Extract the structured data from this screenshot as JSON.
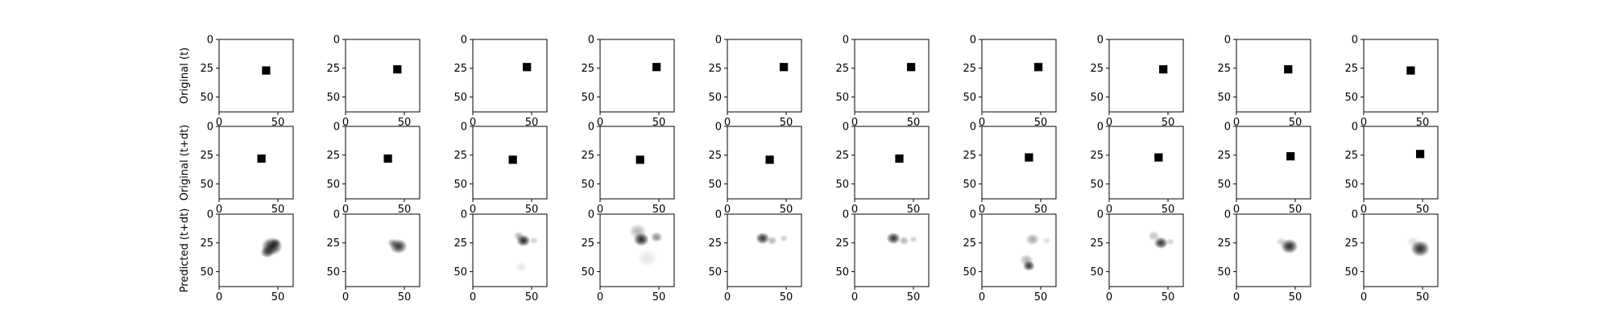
{
  "row_labels": [
    "Original (t)",
    "Original (t+dt)",
    "Predicted (t+dt)"
  ],
  "chart_data": {
    "type": "heatmap",
    "description_note": "",
    "grid": "off",
    "colormap": "gray_r",
    "rows": 3,
    "cols": 10,
    "image_size": 64,
    "xlim": [
      0,
      63
    ],
    "ylim": [
      63,
      0
    ],
    "xticks": [
      0,
      50
    ],
    "yticks": [
      0,
      25,
      50
    ],
    "tick_labels": {
      "x": [
        "0",
        "50"
      ],
      "y": [
        "0",
        "25",
        "50"
      ]
    },
    "panels": [
      [
        {
          "blobs": [
            {
              "x": 40,
              "y": 27,
              "s": 7,
              "i": 1
            }
          ]
        },
        {
          "blobs": [
            {
              "x": 44,
              "y": 26,
              "s": 7,
              "i": 1
            }
          ]
        },
        {
          "blobs": [
            {
              "x": 46,
              "y": 24,
              "s": 7,
              "i": 1
            }
          ]
        },
        {
          "blobs": [
            {
              "x": 48,
              "y": 24,
              "s": 7,
              "i": 1
            }
          ]
        },
        {
          "blobs": [
            {
              "x": 48,
              "y": 24,
              "s": 7,
              "i": 1
            }
          ]
        },
        {
          "blobs": [
            {
              "x": 48,
              "y": 24,
              "s": 7,
              "i": 1
            }
          ]
        },
        {
          "blobs": [
            {
              "x": 48,
              "y": 24,
              "s": 7,
              "i": 1
            }
          ]
        },
        {
          "blobs": [
            {
              "x": 46,
              "y": 26,
              "s": 7,
              "i": 1
            }
          ]
        },
        {
          "blobs": [
            {
              "x": 44,
              "y": 26,
              "s": 7,
              "i": 1
            }
          ]
        },
        {
          "blobs": [
            {
              "x": 40,
              "y": 27,
              "s": 7,
              "i": 1
            }
          ]
        }
      ],
      [
        {
          "blobs": [
            {
              "x": 36,
              "y": 28,
              "s": 7,
              "i": 1
            }
          ]
        },
        {
          "blobs": [
            {
              "x": 36,
              "y": 28,
              "s": 7,
              "i": 1
            }
          ]
        },
        {
          "blobs": [
            {
              "x": 34,
              "y": 29,
              "s": 7,
              "i": 1
            }
          ]
        },
        {
          "blobs": [
            {
              "x": 34,
              "y": 29,
              "s": 7,
              "i": 1
            }
          ]
        },
        {
          "blobs": [
            {
              "x": 36,
              "y": 29,
              "s": 7,
              "i": 1
            }
          ]
        },
        {
          "blobs": [
            {
              "x": 38,
              "y": 28,
              "s": 7,
              "i": 1
            }
          ]
        },
        {
          "blobs": [
            {
              "x": 40,
              "y": 27,
              "s": 7,
              "i": 1
            }
          ]
        },
        {
          "blobs": [
            {
              "x": 42,
              "y": 27,
              "s": 7,
              "i": 1
            }
          ]
        },
        {
          "blobs": [
            {
              "x": 46,
              "y": 26,
              "s": 7,
              "i": 1
            }
          ]
        },
        {
          "blobs": [
            {
              "x": 48,
              "y": 24,
              "s": 7,
              "i": 1
            }
          ]
        }
      ],
      [
        {
          "blobs": [
            {
              "x": 45,
              "y": 28,
              "s": 12,
              "i": 0.9
            },
            {
              "x": 41,
              "y": 33,
              "s": 8,
              "i": 0.7
            },
            {
              "x": 48,
              "y": 25,
              "s": 6,
              "i": 0.5
            }
          ]
        },
        {
          "blobs": [
            {
              "x": 45,
              "y": 28,
              "s": 10,
              "i": 0.8
            },
            {
              "x": 40,
              "y": 25,
              "s": 6,
              "i": 0.4
            }
          ]
        },
        {
          "blobs": [
            {
              "x": 43,
              "y": 23,
              "s": 8,
              "i": 0.85
            },
            {
              "x": 39,
              "y": 19,
              "s": 6,
              "i": 0.3
            },
            {
              "x": 52,
              "y": 23,
              "s": 5,
              "i": 0.2
            },
            {
              "x": 41,
              "y": 46,
              "s": 7,
              "i": 0.1
            }
          ]
        },
        {
          "blobs": [
            {
              "x": 35,
              "y": 22,
              "s": 9,
              "i": 0.85
            },
            {
              "x": 32,
              "y": 15,
              "s": 10,
              "i": 0.3
            },
            {
              "x": 48,
              "y": 20,
              "s": 7,
              "i": 0.45
            },
            {
              "x": 40,
              "y": 38,
              "s": 12,
              "i": 0.1
            }
          ]
        },
        {
          "blobs": [
            {
              "x": 30,
              "y": 21,
              "s": 8,
              "i": 0.8
            },
            {
              "x": 38,
              "y": 23,
              "s": 6,
              "i": 0.3
            },
            {
              "x": 48,
              "y": 21,
              "s": 5,
              "i": 0.2
            }
          ]
        },
        {
          "blobs": [
            {
              "x": 33,
              "y": 21,
              "s": 8,
              "i": 0.8
            },
            {
              "x": 42,
              "y": 23,
              "s": 6,
              "i": 0.3
            },
            {
              "x": 50,
              "y": 22,
              "s": 5,
              "i": 0.2
            }
          ]
        },
        {
          "blobs": [
            {
              "x": 43,
              "y": 22,
              "s": 8,
              "i": 0.35
            },
            {
              "x": 40,
              "y": 45,
              "s": 7,
              "i": 0.8
            },
            {
              "x": 38,
              "y": 40,
              "s": 8,
              "i": 0.3
            },
            {
              "x": 55,
              "y": 23,
              "s": 5,
              "i": 0.15
            }
          ]
        },
        {
          "blobs": [
            {
              "x": 44,
              "y": 25,
              "s": 8,
              "i": 0.8
            },
            {
              "x": 38,
              "y": 19,
              "s": 7,
              "i": 0.25
            },
            {
              "x": 52,
              "y": 24,
              "s": 5,
              "i": 0.2
            }
          ]
        },
        {
          "blobs": [
            {
              "x": 45,
              "y": 28,
              "s": 10,
              "i": 0.85
            },
            {
              "x": 38,
              "y": 24,
              "s": 6,
              "i": 0.2
            }
          ]
        },
        {
          "blobs": [
            {
              "x": 48,
              "y": 30,
              "s": 11,
              "i": 0.85
            },
            {
              "x": 42,
              "y": 24,
              "s": 7,
              "i": 0.15
            }
          ]
        }
      ]
    ]
  }
}
